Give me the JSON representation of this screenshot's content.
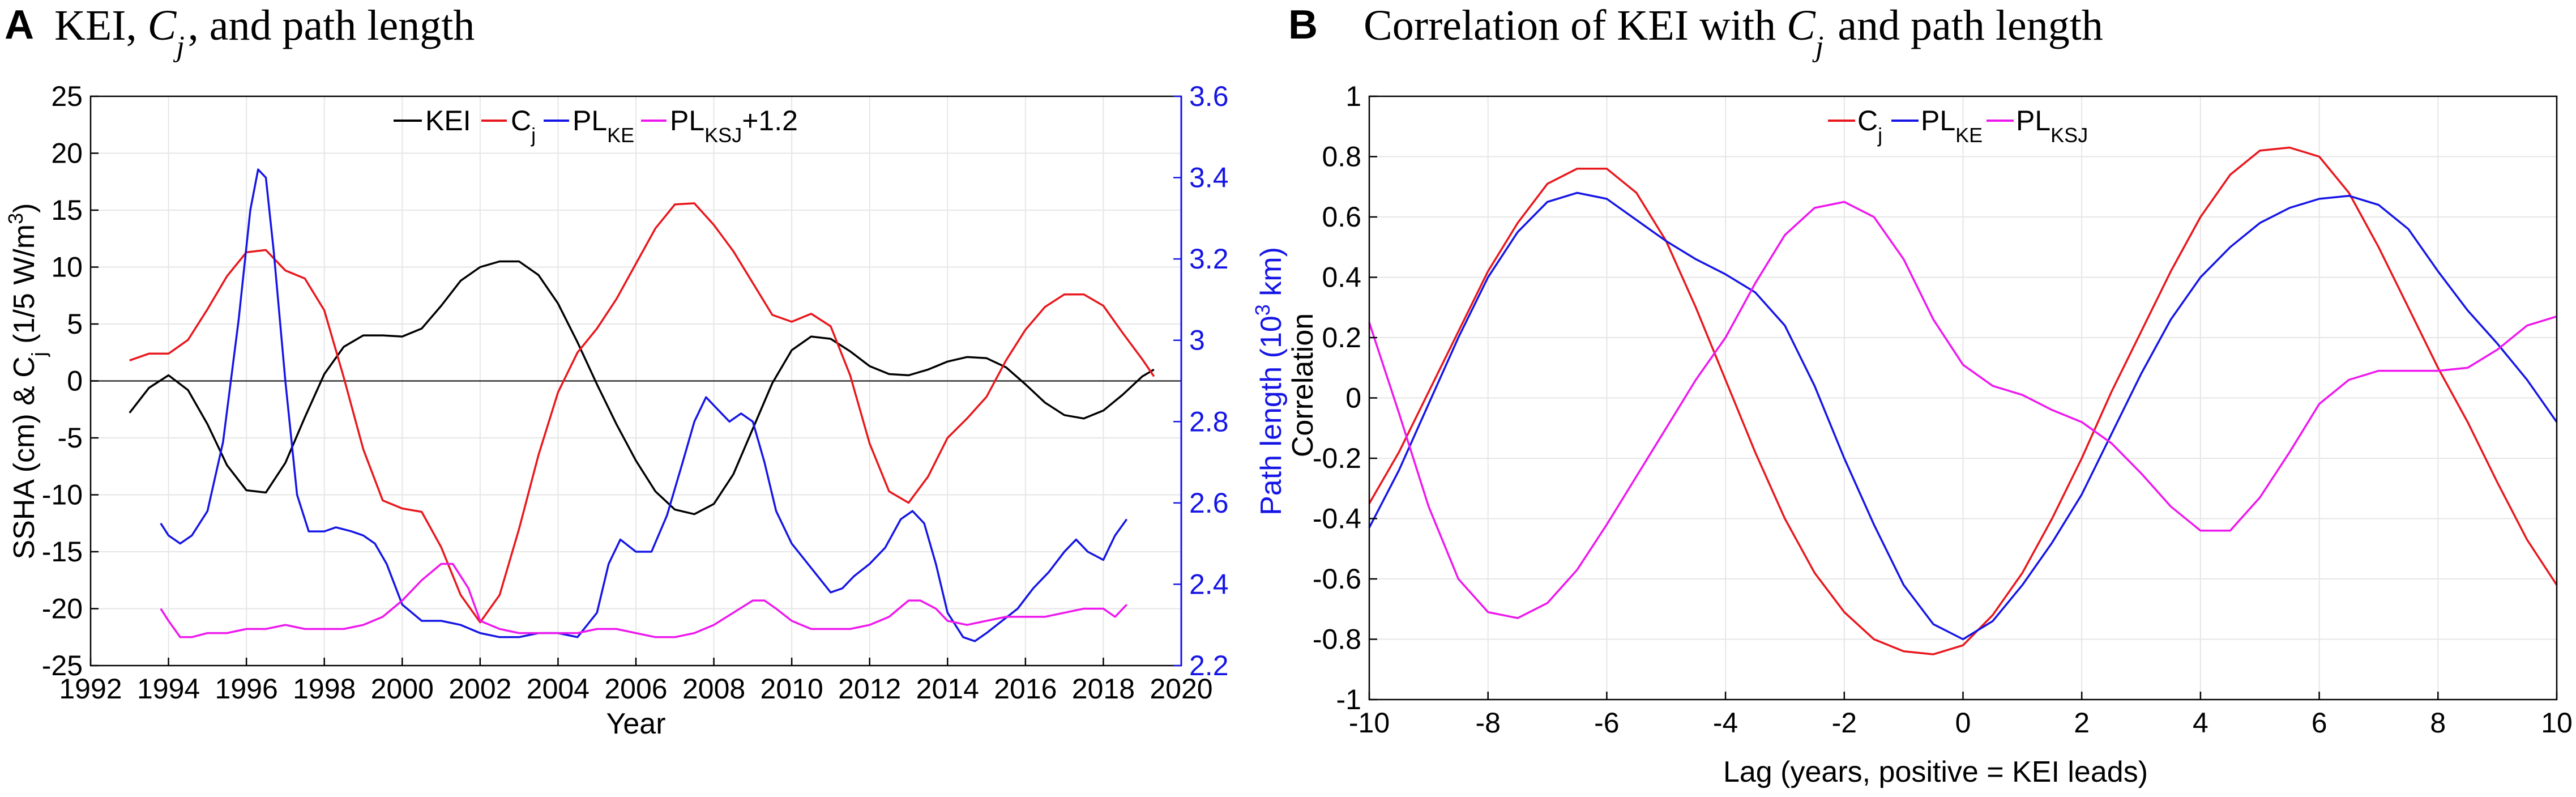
{
  "panels": [
    {
      "panel_label": "A",
      "title_prefix": "KEI, ",
      "title_var": "C",
      "title_var_sub": "j",
      "title_suffix": ", and path length"
    },
    {
      "panel_label": "B",
      "title_prefix": "Correlation of KEI with ",
      "title_var": "C",
      "title_var_sub": "j",
      "title_suffix": " and path length"
    }
  ],
  "colors": {
    "kei": "#000000",
    "cj": "#e8171d",
    "pl_ke": "#1515e6",
    "pl_ksj": "#ee18ee",
    "right_axis": "#1515e6"
  },
  "chart_data": [
    {
      "type": "line",
      "title": "KEI, Cj, and path length",
      "xlabel": "Year",
      "ylabel": "SSHA (cm) & Cj (1/5 W/m3)",
      "ylabel_parts": {
        "main": "SSHA (cm) & C",
        "sub": "j",
        "mid": " (1/5 W/m",
        "sup": "3",
        "end": ")"
      },
      "y2label": "Path length (103 km)",
      "y2label_parts": {
        "main": "Path length (10",
        "sup": "3",
        "end": " km)"
      },
      "xlim": [
        1992,
        2020
      ],
      "ylim": [
        -25,
        25
      ],
      "y2lim": [
        2.2,
        3.6
      ],
      "xticks": [
        "1992",
        "1994",
        "1996",
        "1998",
        "2000",
        "2002",
        "2004",
        "2006",
        "2008",
        "2010",
        "2012",
        "2014",
        "2016",
        "2018",
        "2020"
      ],
      "yticks": [
        "-25",
        "-20",
        "-15",
        "-10",
        "-5",
        "0",
        "5",
        "10",
        "15",
        "20",
        "25"
      ],
      "y2ticks": [
        "2.2",
        "2.4",
        "2.6",
        "2.8",
        "3",
        "3.2",
        "3.4",
        "3.6"
      ],
      "zero_line": true,
      "grid": true,
      "legend_position": "top",
      "legend": [
        {
          "key": "kei",
          "label": "KEI",
          "sub": ""
        },
        {
          "key": "cj",
          "label": "C",
          "sub": "j"
        },
        {
          "key": "pl_ke",
          "label": "PL",
          "sub": "KE"
        },
        {
          "key": "pl_ksj",
          "label": "PL",
          "sub": "KSJ",
          "suffix": "+1.2"
        }
      ],
      "series": [
        {
          "key": "kei",
          "name": "KEI",
          "axis": "left",
          "x": [
            1993.0,
            1993.5,
            1994.0,
            1994.5,
            1995.0,
            1995.5,
            1996.0,
            1996.5,
            1997.0,
            1997.5,
            1998.0,
            1998.5,
            1999.0,
            1999.5,
            2000.0,
            2000.5,
            2001.0,
            2001.5,
            2002.0,
            2002.5,
            2003.0,
            2003.5,
            2004.0,
            2004.5,
            2005.0,
            2005.5,
            2006.0,
            2006.5,
            2007.0,
            2007.5,
            2008.0,
            2008.5,
            2009.0,
            2009.5,
            2010.0,
            2010.5,
            2011.0,
            2011.5,
            2012.0,
            2012.5,
            2013.0,
            2013.5,
            2014.0,
            2014.5,
            2015.0,
            2015.5,
            2016.0,
            2016.5,
            2017.0,
            2017.5,
            2018.0,
            2018.5,
            2019.0,
            2019.3
          ],
          "y": [
            -2.8,
            -0.6,
            0.5,
            -0.8,
            -3.8,
            -7.4,
            -9.6,
            -9.8,
            -7.2,
            -3.2,
            0.6,
            3.0,
            4.0,
            4.0,
            3.9,
            4.6,
            6.6,
            8.8,
            10.0,
            10.5,
            10.5,
            9.3,
            6.8,
            3.4,
            -0.3,
            -3.8,
            -7.0,
            -9.7,
            -11.3,
            -11.7,
            -10.8,
            -8.2,
            -4.2,
            -0.2,
            2.7,
            3.9,
            3.7,
            2.6,
            1.3,
            0.6,
            0.5,
            1.0,
            1.7,
            2.1,
            2.0,
            1.2,
            -0.3,
            -1.9,
            -3.0,
            -3.3,
            -2.6,
            -1.2,
            0.4,
            1.0
          ]
        },
        {
          "key": "cj",
          "name": "Cj",
          "axis": "left",
          "x": [
            1993.0,
            1993.5,
            1994.0,
            1994.5,
            1995.0,
            1995.5,
            1996.0,
            1996.5,
            1997.0,
            1997.5,
            1998.0,
            1998.5,
            1999.0,
            1999.5,
            2000.0,
            2000.5,
            2001.0,
            2001.5,
            2002.0,
            2002.5,
            2003.0,
            2003.5,
            2004.0,
            2004.5,
            2005.0,
            2005.5,
            2006.0,
            2006.5,
            2007.0,
            2007.5,
            2008.0,
            2008.5,
            2009.0,
            2009.5,
            2010.0,
            2010.5,
            2011.0,
            2011.5,
            2012.0,
            2012.5,
            2013.0,
            2013.5,
            2014.0,
            2014.5,
            2015.0,
            2015.5,
            2016.0,
            2016.5,
            2017.0,
            2017.5,
            2018.0,
            2018.5,
            2019.0,
            2019.3
          ],
          "y": [
            1.8,
            2.4,
            2.4,
            3.6,
            6.3,
            9.2,
            11.3,
            11.5,
            9.7,
            9.0,
            6.2,
            0.3,
            -6.0,
            -10.5,
            -11.2,
            -11.5,
            -14.6,
            -18.8,
            -21.2,
            -18.8,
            -13.0,
            -6.5,
            -1.0,
            2.5,
            4.6,
            7.2,
            10.3,
            13.4,
            15.5,
            15.6,
            13.7,
            11.4,
            8.6,
            5.8,
            5.2,
            5.9,
            4.8,
            0.5,
            -5.5,
            -9.7,
            -10.7,
            -8.4,
            -5.0,
            -3.3,
            -1.4,
            1.8,
            4.5,
            6.5,
            7.6,
            7.6,
            6.6,
            4.2,
            1.9,
            0.4
          ]
        },
        {
          "key": "pl_ke",
          "name": "PLKE",
          "axis": "right",
          "x": [
            1993.8,
            1994.0,
            1994.3,
            1994.6,
            1995.0,
            1995.4,
            1995.8,
            1996.1,
            1996.3,
            1996.5,
            1996.7,
            1997.0,
            1997.3,
            1997.6,
            1998.0,
            1998.3,
            1998.7,
            1999.0,
            1999.3,
            1999.6,
            2000.0,
            2000.5,
            2001.0,
            2001.5,
            2002.0,
            2002.5,
            2003.0,
            2003.5,
            2004.0,
            2004.5,
            2005.0,
            2005.3,
            2005.6,
            2006.0,
            2006.4,
            2006.8,
            2007.2,
            2007.5,
            2007.8,
            2008.1,
            2008.4,
            2008.7,
            2009.0,
            2009.3,
            2009.6,
            2010.0,
            2010.5,
            2011.0,
            2011.3,
            2011.6,
            2012.0,
            2012.4,
            2012.8,
            2013.1,
            2013.4,
            2013.7,
            2014.0,
            2014.4,
            2014.7,
            2015.0,
            2015.4,
            2015.8,
            2016.2,
            2016.6,
            2017.0,
            2017.3,
            2017.6,
            2018.0,
            2018.3,
            2018.6
          ],
          "y": [
            2.55,
            2.52,
            2.5,
            2.52,
            2.58,
            2.75,
            3.05,
            3.32,
            3.42,
            3.4,
            3.22,
            2.9,
            2.62,
            2.53,
            2.53,
            2.54,
            2.53,
            2.52,
            2.5,
            2.45,
            2.35,
            2.31,
            2.31,
            2.3,
            2.28,
            2.27,
            2.27,
            2.28,
            2.28,
            2.27,
            2.33,
            2.45,
            2.51,
            2.48,
            2.48,
            2.57,
            2.7,
            2.8,
            2.86,
            2.83,
            2.8,
            2.82,
            2.8,
            2.7,
            2.58,
            2.5,
            2.44,
            2.38,
            2.39,
            2.42,
            2.45,
            2.49,
            2.56,
            2.58,
            2.55,
            2.45,
            2.33,
            2.27,
            2.26,
            2.28,
            2.31,
            2.34,
            2.39,
            2.43,
            2.48,
            2.51,
            2.48,
            2.46,
            2.52,
            2.56
          ]
        },
        {
          "key": "pl_ksj",
          "name": "PLKSJ+1.2",
          "axis": "right",
          "x": [
            1993.8,
            1994.0,
            1994.3,
            1994.6,
            1995.0,
            1995.5,
            1996.0,
            1996.5,
            1997.0,
            1997.5,
            1998.0,
            1998.5,
            1999.0,
            1999.5,
            2000.0,
            2000.5,
            2001.0,
            2001.3,
            2001.7,
            2002.0,
            2002.5,
            2003.0,
            2003.5,
            2004.0,
            2004.5,
            2005.0,
            2005.5,
            2006.0,
            2006.5,
            2007.0,
            2007.5,
            2008.0,
            2008.5,
            2009.0,
            2009.3,
            2009.6,
            2010.0,
            2010.5,
            2011.0,
            2011.5,
            2012.0,
            2012.5,
            2013.0,
            2013.3,
            2013.7,
            2014.0,
            2014.5,
            2015.0,
            2015.5,
            2016.0,
            2016.5,
            2017.0,
            2017.5,
            2018.0,
            2018.3,
            2018.6
          ],
          "y": [
            2.34,
            2.31,
            2.27,
            2.27,
            2.28,
            2.28,
            2.29,
            2.29,
            2.3,
            2.29,
            2.29,
            2.29,
            2.3,
            2.32,
            2.36,
            2.41,
            2.45,
            2.45,
            2.39,
            2.31,
            2.29,
            2.28,
            2.28,
            2.28,
            2.28,
            2.29,
            2.29,
            2.28,
            2.27,
            2.27,
            2.28,
            2.3,
            2.33,
            2.36,
            2.36,
            2.34,
            2.31,
            2.29,
            2.29,
            2.29,
            2.3,
            2.32,
            2.36,
            2.36,
            2.34,
            2.31,
            2.3,
            2.31,
            2.32,
            2.32,
            2.32,
            2.33,
            2.34,
            2.34,
            2.32,
            2.35
          ]
        }
      ]
    },
    {
      "type": "line",
      "title": "Correlation of KEI with Cj and path length",
      "xlabel": "Lag (years, positive = KEI leads)",
      "ylabel": "Correlation",
      "xlim": [
        -10,
        10
      ],
      "ylim": [
        -1,
        1
      ],
      "xticks": [
        "-10",
        "-8",
        "-6",
        "-4",
        "-2",
        "0",
        "2",
        "4",
        "6",
        "8",
        "10"
      ],
      "yticks": [
        "-1",
        "-0.8",
        "-0.6",
        "-0.4",
        "-0.2",
        "0",
        "0.2",
        "0.4",
        "0.6",
        "0.8",
        "1"
      ],
      "grid": true,
      "legend_position": "top",
      "legend": [
        {
          "key": "cj",
          "label": "C",
          "sub": "j"
        },
        {
          "key": "pl_ke",
          "label": "PL",
          "sub": "KE"
        },
        {
          "key": "pl_ksj",
          "label": "PL",
          "sub": "KSJ"
        }
      ],
      "series": [
        {
          "key": "cj",
          "name": "Cj",
          "x": [
            -10,
            -9.5,
            -9,
            -8.5,
            -8,
            -7.5,
            -7,
            -6.5,
            -6,
            -5.5,
            -5,
            -4.5,
            -4,
            -3.5,
            -3,
            -2.5,
            -2,
            -1.5,
            -1,
            -0.5,
            0,
            0.5,
            1,
            1.5,
            2,
            2.5,
            3,
            3.5,
            4,
            4.5,
            5,
            5.5,
            6,
            6.5,
            7,
            7.5,
            8,
            8.5,
            9,
            9.5,
            10
          ],
          "y": [
            -0.35,
            -0.18,
            0.02,
            0.22,
            0.42,
            0.58,
            0.71,
            0.76,
            0.76,
            0.68,
            0.52,
            0.3,
            0.06,
            -0.18,
            -0.4,
            -0.58,
            -0.71,
            -0.8,
            -0.84,
            -0.85,
            -0.82,
            -0.72,
            -0.58,
            -0.4,
            -0.2,
            0.02,
            0.22,
            0.42,
            0.6,
            0.74,
            0.82,
            0.83,
            0.8,
            0.68,
            0.5,
            0.3,
            0.1,
            -0.08,
            -0.28,
            -0.47,
            -0.62
          ]
        },
        {
          "key": "pl_ke",
          "name": "PLKE",
          "x": [
            -10,
            -9.5,
            -9,
            -8.5,
            -8,
            -7.5,
            -7,
            -6.5,
            -6,
            -5.5,
            -5,
            -4.5,
            -4,
            -3.5,
            -3,
            -2.5,
            -2,
            -1.5,
            -1,
            -0.5,
            0,
            0.5,
            1,
            1.5,
            2,
            2.5,
            3,
            3.5,
            4,
            4.5,
            5,
            5.5,
            6,
            6.5,
            7,
            7.5,
            8,
            8.5,
            9,
            9.5,
            10
          ],
          "y": [
            -0.43,
            -0.24,
            -0.02,
            0.2,
            0.4,
            0.55,
            0.65,
            0.68,
            0.66,
            0.59,
            0.52,
            0.46,
            0.41,
            0.35,
            0.24,
            0.04,
            -0.2,
            -0.42,
            -0.62,
            -0.75,
            -0.8,
            -0.74,
            -0.62,
            -0.48,
            -0.32,
            -0.12,
            0.08,
            0.26,
            0.4,
            0.5,
            0.58,
            0.63,
            0.66,
            0.67,
            0.64,
            0.56,
            0.42,
            0.29,
            0.18,
            0.06,
            -0.08
          ]
        },
        {
          "key": "pl_ksj",
          "name": "PLKSJ",
          "x": [
            -10,
            -9.5,
            -9,
            -8.5,
            -8,
            -7.5,
            -7,
            -6.5,
            -6,
            -5.5,
            -5,
            -4.5,
            -4,
            -3.5,
            -3,
            -2.5,
            -2,
            -1.5,
            -1,
            -0.5,
            0,
            0.5,
            1,
            1.5,
            2,
            2.5,
            3,
            3.5,
            4,
            4.5,
            5,
            5.5,
            6,
            6.5,
            7,
            7.5,
            8,
            8.5,
            9,
            9.5,
            10
          ],
          "y": [
            0.25,
            -0.05,
            -0.36,
            -0.6,
            -0.71,
            -0.73,
            -0.68,
            -0.57,
            -0.42,
            -0.26,
            -0.1,
            0.06,
            0.2,
            0.38,
            0.54,
            0.63,
            0.65,
            0.6,
            0.46,
            0.26,
            0.11,
            0.04,
            0.01,
            -0.04,
            -0.08,
            -0.15,
            -0.25,
            -0.36,
            -0.44,
            -0.44,
            -0.33,
            -0.18,
            -0.02,
            0.06,
            0.09,
            0.09,
            0.09,
            0.1,
            0.16,
            0.24,
            0.27
          ]
        }
      ]
    }
  ]
}
